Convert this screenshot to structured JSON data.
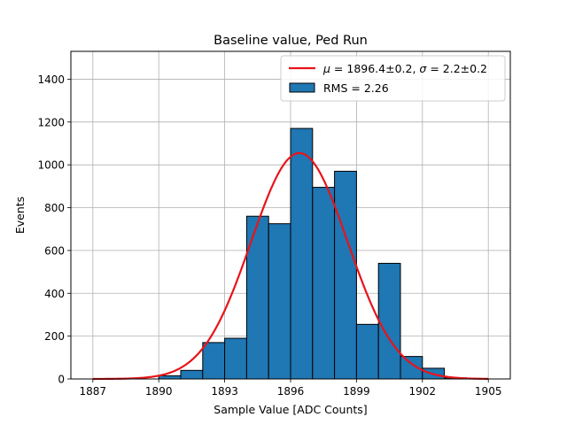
{
  "chart_data": {
    "type": "bar",
    "title": "Baseline value, Ped Run",
    "xlabel": "Sample Value [ADC Counts]",
    "ylabel": "Events",
    "xlim": [
      1886,
      1906
    ],
    "ylim": [
      0,
      1530
    ],
    "grid": true,
    "xticks": [
      1887,
      1890,
      1893,
      1896,
      1899,
      1902,
      1905
    ],
    "yticks": [
      0,
      200,
      400,
      600,
      800,
      1000,
      1200,
      1400
    ],
    "bins": [
      {
        "left": 1890.0,
        "right": 1891.0,
        "value": 15
      },
      {
        "left": 1891.0,
        "right": 1892.0,
        "value": 40
      },
      {
        "left": 1892.0,
        "right": 1893.0,
        "value": 170
      },
      {
        "left": 1893.0,
        "right": 1894.0,
        "value": 190
      },
      {
        "left": 1894.0,
        "right": 1895.0,
        "value": 760
      },
      {
        "left": 1895.0,
        "right": 1896.0,
        "value": 725
      },
      {
        "left": 1896.0,
        "right": 1897.0,
        "value": 1170
      },
      {
        "left": 1897.0,
        "right": 1898.0,
        "value": 895
      },
      {
        "left": 1898.0,
        "right": 1899.0,
        "value": 970
      },
      {
        "left": 1899.0,
        "right": 1900.0,
        "value": 255
      },
      {
        "left": 1900.0,
        "right": 1901.0,
        "value": 540
      },
      {
        "left": 1901.0,
        "right": 1902.0,
        "value": 105
      },
      {
        "left": 1902.0,
        "right": 1903.0,
        "value": 50
      },
      {
        "left": 1903.0,
        "right": 1904.0,
        "value": 5
      }
    ],
    "fit": {
      "name": "μ=1896.4±0.2, σ=2.2±0.2",
      "mu": 1896.4,
      "sigma": 2.2,
      "amplitude": 1055,
      "x_range": [
        1887,
        1905
      ]
    },
    "legend": {
      "position": "top-right",
      "entries": [
        {
          "label_prefix": "μ",
          "label_mid": " = 1896.4±0.2, ",
          "label_sigma": "σ",
          "label_tail": " = 2.2±0.2",
          "kind": "line"
        },
        {
          "label": "RMS = 2.26",
          "kind": "patch"
        }
      ]
    },
    "colors": {
      "bar_fill": "#1f77b4",
      "bar_edge": "#000000",
      "fit_line": "#e8141a",
      "grid": "#b0b0b0"
    }
  }
}
